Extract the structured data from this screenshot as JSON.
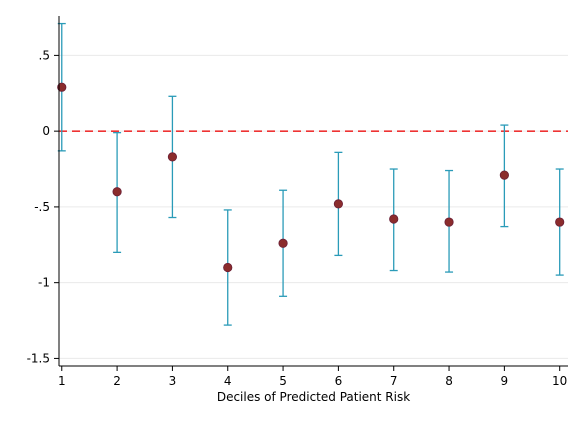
{
  "chart_data": {
    "type": "scatter",
    "subtype": "point-estimate-with-confidence-intervals",
    "title": "",
    "xlabel": "Deciles of Predicted Patient Risk",
    "ylabel": "",
    "x": [
      1,
      2,
      3,
      4,
      5,
      6,
      7,
      8,
      9,
      10
    ],
    "estimates": [
      0.29,
      -0.4,
      -0.17,
      -0.9,
      -0.74,
      -0.48,
      -0.58,
      -0.6,
      -0.29,
      -0.6
    ],
    "ci_lower": [
      -0.13,
      -0.8,
      -0.57,
      -1.28,
      -1.09,
      -0.82,
      -0.92,
      -0.93,
      -0.63,
      -0.95
    ],
    "ci_upper": [
      0.71,
      -0.01,
      0.23,
      -0.52,
      -0.39,
      -0.14,
      -0.25,
      -0.26,
      0.04,
      -0.25
    ],
    "xticks": [
      1,
      2,
      3,
      4,
      5,
      6,
      7,
      8,
      9,
      10
    ],
    "xtick_labels": [
      "1",
      "2",
      "3",
      "4",
      "5",
      "6",
      "7",
      "8",
      "9",
      "10"
    ],
    "yticks": [
      0.5,
      0,
      -0.5,
      -1,
      -1.5
    ],
    "ytick_labels": [
      ".5",
      "0",
      "-.5",
      "-1",
      "-1.5"
    ],
    "xlim": [
      0.95,
      10.15
    ],
    "ylim": [
      -1.55,
      0.76
    ],
    "reference_line": {
      "y": 0,
      "style": "dashed"
    },
    "grid": true,
    "colors": {
      "marker_fill": "#8b2c2c",
      "marker_edge": "#6a1f36",
      "error_bar": "#2a9bb8",
      "reference_line": "#ee3333",
      "grid": "#eaeaea",
      "axis": "#000000"
    }
  }
}
